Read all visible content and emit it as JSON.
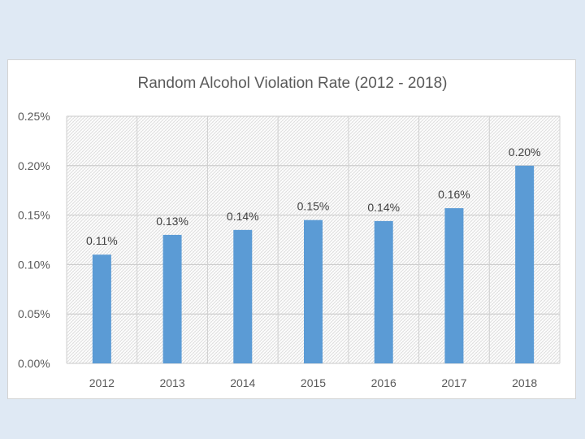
{
  "chart_data": {
    "type": "bar",
    "title": "Random Alcohol Violation Rate (2012 - 2018)",
    "xlabel": "",
    "ylabel": "",
    "categories": [
      "2012",
      "2013",
      "2014",
      "2015",
      "2016",
      "2017",
      "2018"
    ],
    "values": [
      0.11,
      0.13,
      0.135,
      0.145,
      0.144,
      0.157,
      0.2
    ],
    "data_labels": [
      "0.11%",
      "0.13%",
      "0.14%",
      "0.15%",
      "0.14%",
      "0.16%",
      "0.20%"
    ],
    "ylim": [
      0,
      0.25
    ],
    "y_ticks": [
      0,
      0.05,
      0.1,
      0.15,
      0.2,
      0.25
    ],
    "y_tick_labels": [
      "0.00%",
      "0.05%",
      "0.10%",
      "0.15%",
      "0.20%",
      "0.25%"
    ],
    "grid": true,
    "legend": "none",
    "bar_color": "#5b9bd5"
  }
}
